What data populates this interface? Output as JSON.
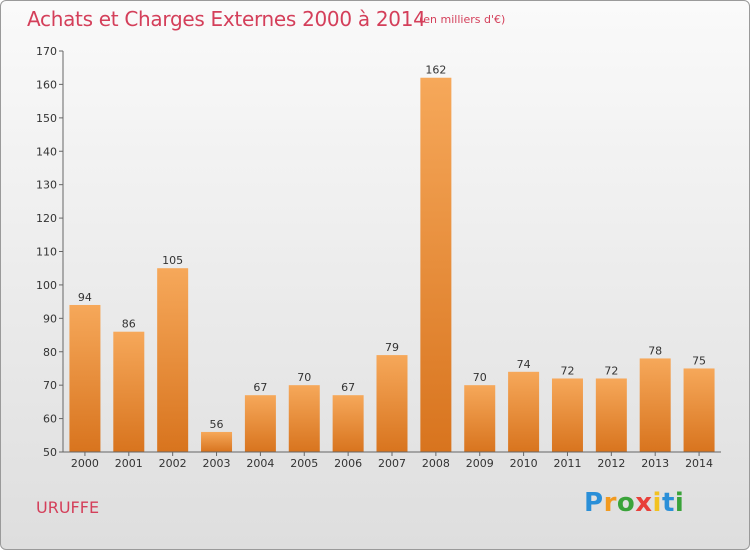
{
  "chart_data": {
    "type": "bar",
    "title": "Achats et Charges Externes 2000 à 2014",
    "subtitle": "(en milliers d'€)",
    "categories": [
      "2000",
      "2001",
      "2002",
      "2003",
      "2004",
      "2005",
      "2006",
      "2007",
      "2008",
      "2009",
      "2010",
      "2011",
      "2012",
      "2013",
      "2014"
    ],
    "values": [
      94,
      86,
      105,
      56,
      67,
      70,
      67,
      79,
      162,
      70,
      74,
      72,
      72,
      78,
      75
    ],
    "ylim": [
      50,
      170
    ],
    "yticks": [
      50,
      60,
      70,
      80,
      90,
      100,
      110,
      120,
      130,
      140,
      150,
      160,
      170
    ],
    "grid": false,
    "bar_color": "#f0a050"
  },
  "commune": "URUFFE",
  "logo": {
    "letters": [
      "P",
      "r",
      "o",
      "x",
      "i",
      "t",
      "i"
    ],
    "colors": [
      "#2a8fd8",
      "#f29a1f",
      "#3aa33a",
      "#e8403a",
      "#f2c21f",
      "#2a8fd8",
      "#3aa33a"
    ]
  }
}
